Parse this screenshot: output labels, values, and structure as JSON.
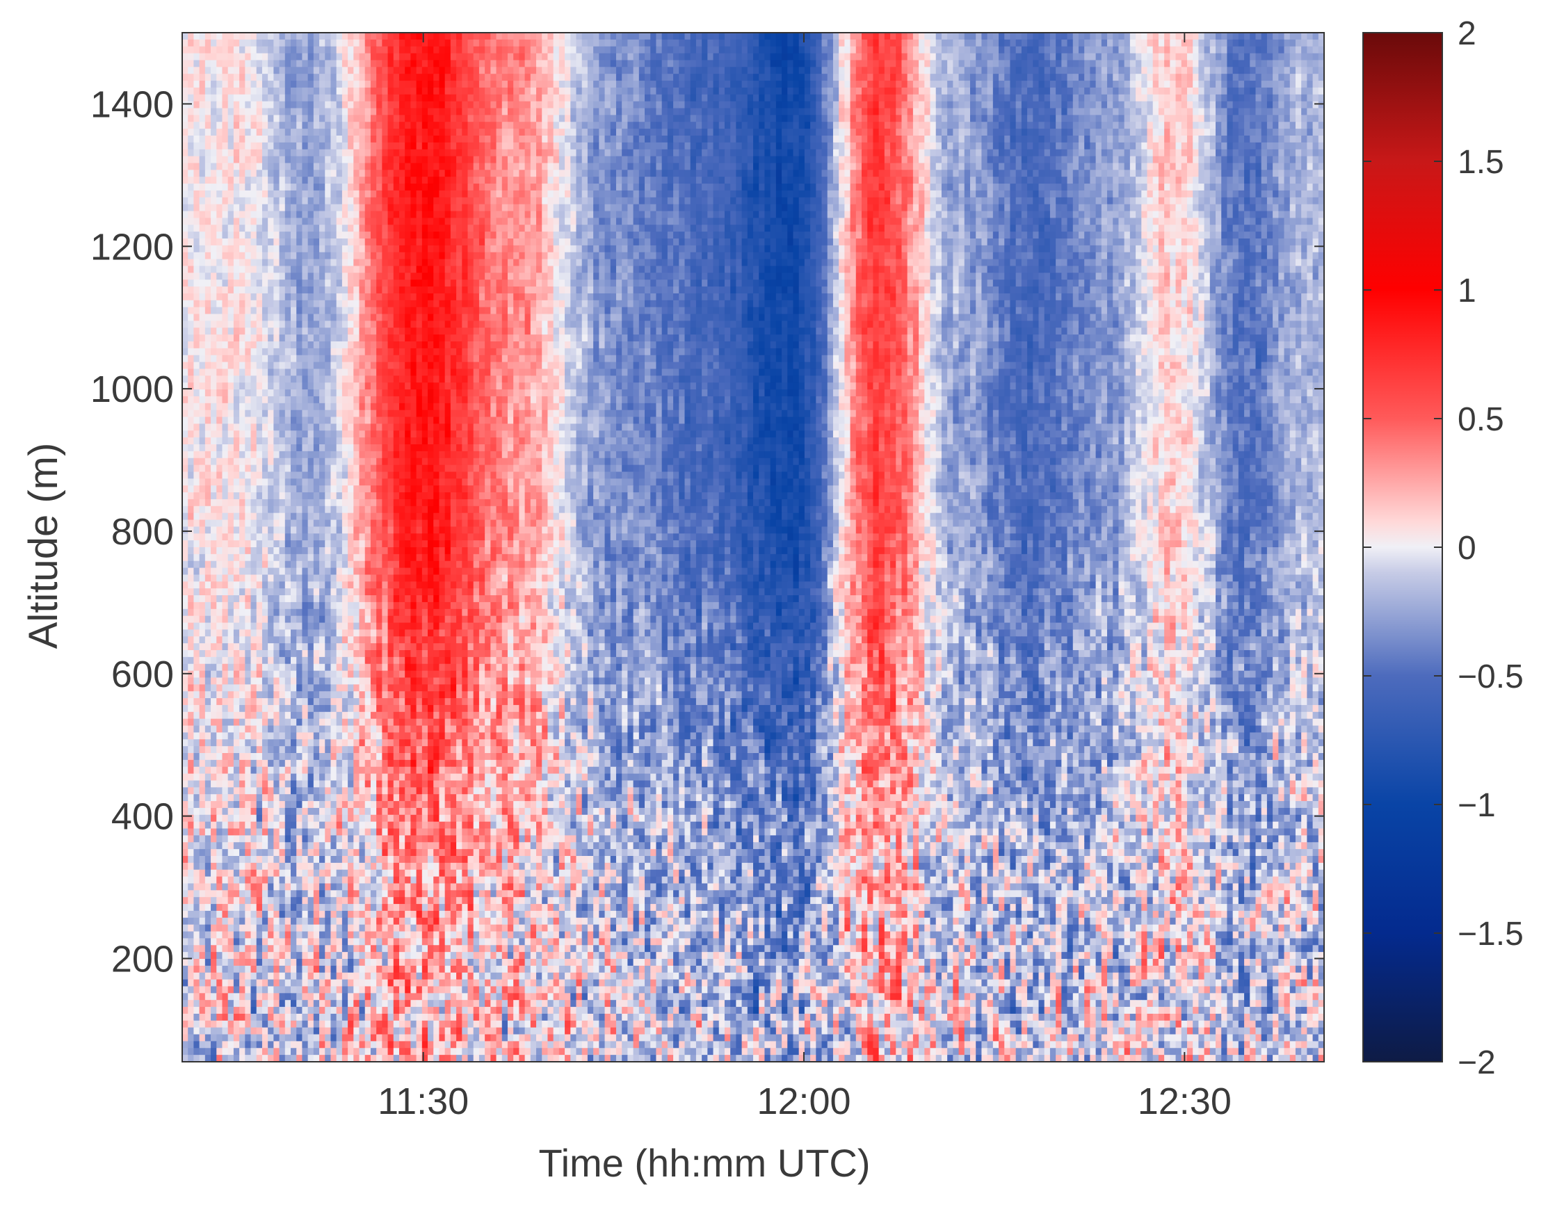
{
  "chart_data": {
    "type": "heatmap",
    "title": "",
    "xlabel": "Time (hh:mm UTC)",
    "ylabel": "Altitude (m)",
    "x_range": [
      "11:11",
      "12:41"
    ],
    "y_range": [
      55,
      1500
    ],
    "x_ticks": [
      "11:30",
      "12:00",
      "12:30"
    ],
    "y_ticks": [
      200,
      400,
      600,
      800,
      1000,
      1200,
      1400
    ],
    "colorbar": {
      "range": [
        -2,
        2
      ],
      "ticks": [
        "2",
        "1.5",
        "1",
        "0.5",
        "0",
        "−0.5",
        "−1",
        "−1.5",
        "−2"
      ],
      "colors": {
        "-2": "#0e1b45",
        "-1.5": "#042a8e",
        "-1": "#0944a6",
        "-0.5": "#4d6bbd",
        "-0.1": "#c6cbe6",
        "0": "#f0f0f6",
        "0.1": "#ffd8d8",
        "0.5": "#ff5a5a",
        "1": "#ff0000",
        "1.5": "#c81818",
        "2": "#6a0a0a"
      }
    },
    "grid": false,
    "description_of_field": {
      "upper_column_pattern_times": [
        "11:15",
        "11:21",
        "11:30",
        "11:37",
        "11:45",
        "11:52",
        "11:59",
        "12:06",
        "12:12",
        "12:18",
        "12:24",
        "12:29",
        "12:35",
        "12:39"
      ],
      "upper_column_pattern_values": [
        0.05,
        -0.25,
        0.9,
        0.35,
        -0.35,
        -0.55,
        -0.95,
        0.65,
        -0.25,
        -0.55,
        -0.3,
        0.15,
        -0.5,
        -0.2
      ]
    }
  }
}
